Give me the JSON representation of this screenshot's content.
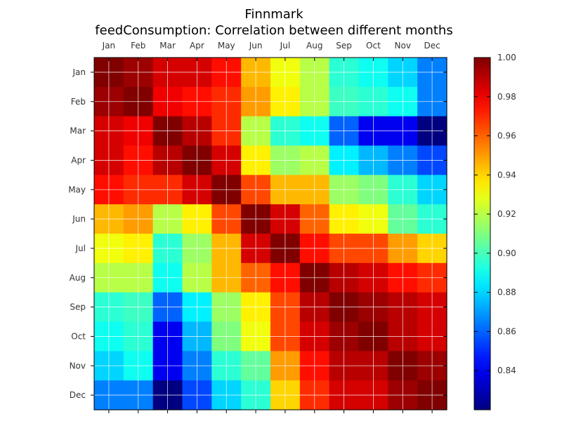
{
  "chart_data": {
    "type": "heatmap",
    "title": "Finnmark",
    "subtitle": "feedConsumption: Correlation between different months",
    "x_categories": [
      "Jan",
      "Feb",
      "Mar",
      "Apr",
      "May",
      "Jun",
      "Jul",
      "Aug",
      "Sep",
      "Oct",
      "Nov",
      "Dec"
    ],
    "y_categories": [
      "Jan",
      "Feb",
      "Mar",
      "Apr",
      "May",
      "Jun",
      "Jul",
      "Aug",
      "Sep",
      "Oct",
      "Nov",
      "Dec"
    ],
    "x_axis_position": "top",
    "grid": true,
    "colormap": "jet",
    "vmin": 0.82,
    "vmax": 1.0,
    "colorbar": {
      "position": "right",
      "ticks": [
        "0.84",
        "0.86",
        "0.88",
        "0.90",
        "0.92",
        "0.94",
        "0.96",
        "0.98",
        "1.00"
      ],
      "tick_values": [
        0.84,
        0.86,
        0.88,
        0.9,
        0.92,
        0.94,
        0.96,
        0.98,
        1.0
      ]
    },
    "values": [
      [
        1.0,
        0.995,
        0.985,
        0.985,
        0.975,
        0.945,
        0.93,
        0.92,
        0.895,
        0.89,
        0.88,
        0.865
      ],
      [
        0.995,
        1.0,
        0.98,
        0.975,
        0.97,
        0.95,
        0.935,
        0.92,
        0.898,
        0.895,
        0.89,
        0.865
      ],
      [
        0.985,
        0.98,
        1.0,
        0.99,
        0.97,
        0.92,
        0.895,
        0.89,
        0.86,
        0.84,
        0.84,
        0.82
      ],
      [
        0.985,
        0.975,
        0.99,
        1.0,
        0.985,
        0.935,
        0.915,
        0.92,
        0.885,
        0.875,
        0.865,
        0.855
      ],
      [
        0.975,
        0.97,
        0.97,
        0.985,
        1.0,
        0.965,
        0.945,
        0.945,
        0.915,
        0.91,
        0.895,
        0.88
      ],
      [
        0.945,
        0.95,
        0.92,
        0.935,
        0.965,
        1.0,
        0.985,
        0.96,
        0.935,
        0.93,
        0.905,
        0.895
      ],
      [
        0.93,
        0.935,
        0.895,
        0.915,
        0.945,
        0.985,
        1.0,
        0.975,
        0.965,
        0.965,
        0.95,
        0.94
      ],
      [
        0.92,
        0.92,
        0.89,
        0.92,
        0.945,
        0.96,
        0.975,
        1.0,
        0.99,
        0.985,
        0.975,
        0.97
      ],
      [
        0.895,
        0.898,
        0.86,
        0.885,
        0.915,
        0.935,
        0.965,
        0.99,
        1.0,
        0.995,
        0.99,
        0.985
      ],
      [
        0.89,
        0.895,
        0.84,
        0.875,
        0.91,
        0.93,
        0.965,
        0.985,
        0.995,
        1.0,
        0.99,
        0.985
      ],
      [
        0.88,
        0.89,
        0.84,
        0.865,
        0.895,
        0.905,
        0.95,
        0.975,
        0.99,
        0.99,
        1.0,
        0.995
      ],
      [
        0.865,
        0.865,
        0.82,
        0.855,
        0.88,
        0.895,
        0.94,
        0.97,
        0.985,
        0.985,
        0.995,
        1.0
      ]
    ]
  }
}
